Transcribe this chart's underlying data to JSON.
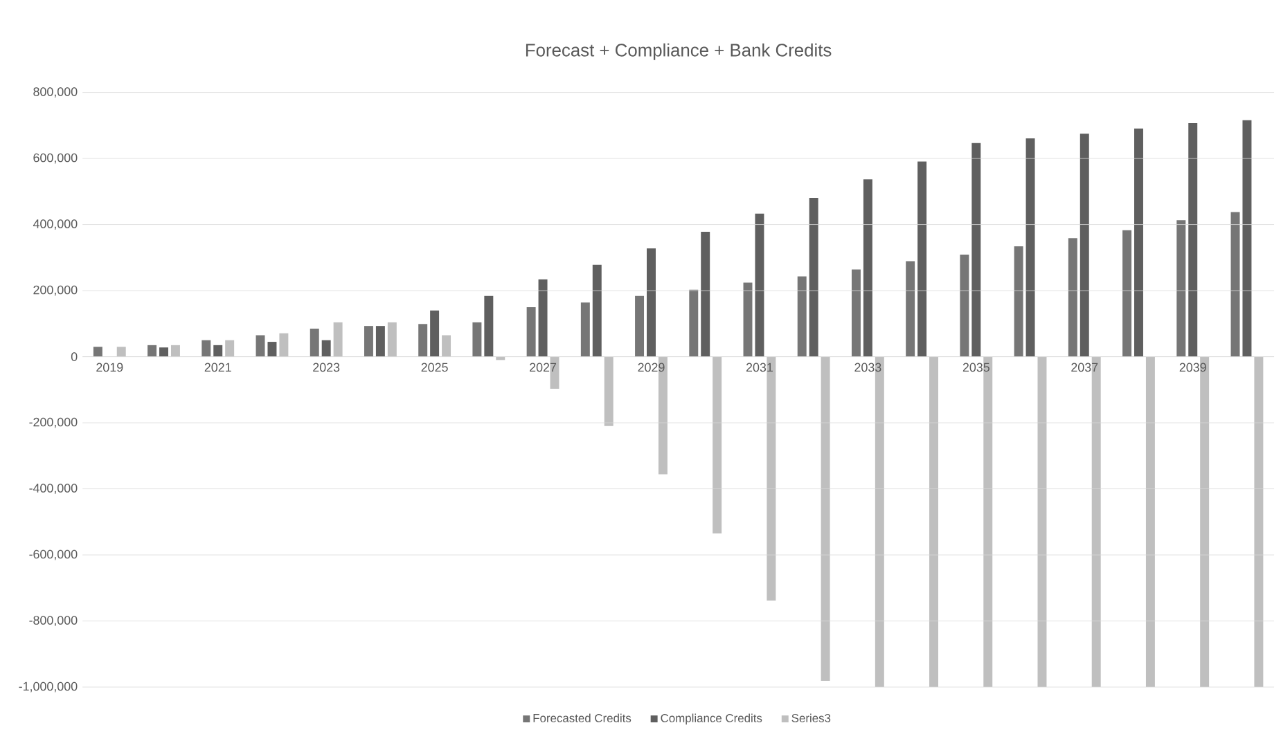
{
  "chart_data": {
    "type": "bar",
    "title": "Forecast + Compliance + Bank Credits",
    "categories": [
      "2019",
      null,
      "2021",
      null,
      "2023",
      null,
      "2025",
      null,
      "2027",
      null,
      "2029",
      null,
      "2031",
      null,
      "2033",
      null,
      "2035",
      null,
      "2037",
      null,
      "2039",
      null
    ],
    "series": [
      {
        "name": "Forecasted Credits",
        "color": "#767676",
        "values": [
          30000,
          35000,
          50000,
          65000,
          85000,
          93000,
          99000,
          104000,
          150000,
          164000,
          184000,
          203000,
          224000,
          243000,
          264000,
          289000,
          309000,
          334000,
          359000,
          383000,
          413000,
          438000
        ]
      },
      {
        "name": "Compliance Credits",
        "color": "#5f5f5f",
        "values": [
          0,
          28000,
          35000,
          45000,
          50000,
          93000,
          140000,
          184000,
          234000,
          278000,
          328000,
          378000,
          433000,
          481000,
          537000,
          591000,
          647000,
          661000,
          675000,
          691000,
          707000,
          716000
        ]
      },
      {
        "name": "Series3",
        "color": "#bfbfbf",
        "values": [
          30000,
          35000,
          50000,
          71000,
          104000,
          104000,
          65000,
          -10000,
          -97000,
          -210000,
          -356000,
          -535000,
          -738000,
          -981000,
          -1000000,
          -1000000,
          -1000000,
          -1000000,
          -1000000,
          -1000000,
          -1000000,
          -1000000
        ]
      }
    ],
    "ylim": [
      -1000000,
      800000
    ],
    "yticks": [
      {
        "value": -1000000,
        "label": "-1,000,000"
      },
      {
        "value": -800000,
        "label": "-800,000"
      },
      {
        "value": -600000,
        "label": "-600,000"
      },
      {
        "value": -400000,
        "label": "-400,000"
      },
      {
        "value": -200000,
        "label": "-200,000"
      },
      0,
      {
        "value": 200000,
        "label": "200,000"
      },
      {
        "value": 400000,
        "label": "400,000"
      },
      {
        "value": 600000,
        "label": "600,000"
      },
      {
        "value": 800000,
        "label": "800,000"
      }
    ],
    "grid": "y",
    "legend": "bottom"
  }
}
